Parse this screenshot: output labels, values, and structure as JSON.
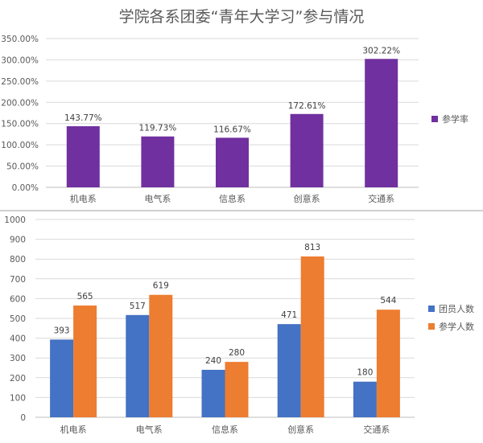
{
  "chart_data": [
    {
      "type": "bar",
      "title": "学院各系团委“青年大学习”参与情况",
      "categories": [
        "机电系",
        "电气系",
        "信息系",
        "创意系",
        "交通系"
      ],
      "series": [
        {
          "name": "参学率",
          "values": [
            143.77,
            119.73,
            116.67,
            172.61,
            302.22
          ],
          "color": "#7030a0"
        }
      ],
      "value_labels": [
        "143.77%",
        "119.73%",
        "116.67%",
        "172.61%",
        "302.22%"
      ],
      "y_ticks": [
        "0.00%",
        "50.00%",
        "100.00%",
        "150.00%",
        "200.00%",
        "250.00%",
        "300.00%",
        "350.00%"
      ],
      "ylim": [
        0,
        350
      ],
      "grid": true,
      "legend": "right"
    },
    {
      "type": "bar",
      "title": "",
      "categories": [
        "机电系",
        "电气系",
        "信息系",
        "创意系",
        "交通系"
      ],
      "series": [
        {
          "name": "团员人数",
          "values": [
            393,
            517,
            240,
            471,
            180
          ],
          "color": "#4472c4"
        },
        {
          "name": "参学人数",
          "values": [
            565,
            619,
            280,
            813,
            544
          ],
          "color": "#ed7d31"
        }
      ],
      "y_ticks": [
        "0",
        "100",
        "200",
        "300",
        "400",
        "500",
        "600",
        "700",
        "800",
        "900",
        "1000"
      ],
      "ylim": [
        0,
        1000
      ],
      "grid": true,
      "legend": "right"
    }
  ]
}
